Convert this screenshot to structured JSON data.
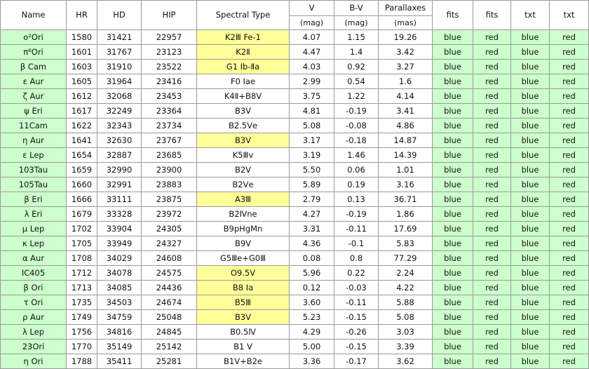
{
  "headers": {
    "name": "Name",
    "hr": "HR",
    "hd": "HD",
    "hip": "HIP",
    "spectral": "Spectral Type",
    "v": "V",
    "bv": "B-V",
    "parallax": "Parallaxes",
    "fits1": "fits",
    "fits2": "fits",
    "txt1": "txt",
    "txt2": "txt",
    "v_unit": "(mag)",
    "bv_unit": "(mag)",
    "parallax_unit": "(mas)"
  },
  "rows": [
    {
      "name": "ο²Ori",
      "hr": "1580",
      "hd": "31421",
      "hip": "22957",
      "sp": "K2Ⅲ Fe-1",
      "v": "4.07",
      "bv": "1.15",
      "plx": "19.26",
      "f1": "blue",
      "f2": "red",
      "t1": "blue",
      "t2": "red",
      "hl": true
    },
    {
      "name": "π⁶Ori",
      "hr": "1601",
      "hd": "31767",
      "hip": "23123",
      "sp": "K2Ⅱ",
      "v": "4.47",
      "bv": "1.4",
      "plx": "3.42",
      "f1": "blue",
      "f2": "red",
      "t1": "blue",
      "t2": "red",
      "hl": true
    },
    {
      "name": "β Cam",
      "hr": "1603",
      "hd": "31910",
      "hip": "23522",
      "sp": "G1 Ⅰb-Ⅱa",
      "v": "4.03",
      "bv": "0.92",
      "plx": "3.27",
      "f1": "blue",
      "f2": "red",
      "t1": "blue",
      "t2": "red",
      "hl": true
    },
    {
      "name": "ε Aur",
      "hr": "1605",
      "hd": "31964",
      "hip": "23416",
      "sp": "F0 Ⅰae",
      "v": "2.99",
      "bv": "0.54",
      "plx": "1.6",
      "f1": "blue",
      "f2": "red",
      "t1": "blue",
      "t2": "red",
      "hl": false
    },
    {
      "name": "ζ Aur",
      "hr": "1612",
      "hd": "32068",
      "hip": "23453",
      "sp": "K4Ⅱ+B8Ⅴ",
      "v": "3.75",
      "bv": "1.22",
      "plx": "4.14",
      "f1": "blue",
      "f2": "red",
      "t1": "blue",
      "t2": "red",
      "hl": false
    },
    {
      "name": "ψ Eri",
      "hr": "1617",
      "hd": "32249",
      "hip": "23364",
      "sp": "B3Ⅴ",
      "v": "4.81",
      "bv": "-0.19",
      "plx": "3.41",
      "f1": "blue",
      "f2": "red",
      "t1": "blue",
      "t2": "red",
      "hl": false
    },
    {
      "name": "11Cam",
      "hr": "1622",
      "hd": "32343",
      "hip": "23734",
      "sp": "B2.5Ⅴe",
      "v": "5.08",
      "bv": "-0.08",
      "plx": "4.86",
      "f1": "blue",
      "f2": "red",
      "t1": "blue",
      "t2": "red",
      "hl": false
    },
    {
      "name": "η Aur",
      "hr": "1641",
      "hd": "32630",
      "hip": "23767",
      "sp": "B3Ⅴ",
      "v": "3.17",
      "bv": "-0.18",
      "plx": "14.87",
      "f1": "blue",
      "f2": "red",
      "t1": "blue",
      "t2": "red",
      "hl": true
    },
    {
      "name": "ε Lep",
      "hr": "1654",
      "hd": "32887",
      "hip": "23685",
      "sp": "K5Ⅲv",
      "v": "3.19",
      "bv": "1.46",
      "plx": "14.39",
      "f1": "blue",
      "f2": "red",
      "t1": "blue",
      "t2": "red",
      "hl": false
    },
    {
      "name": "103Tau",
      "hr": "1659",
      "hd": "32990",
      "hip": "23900",
      "sp": "B2Ⅴ",
      "v": "5.50",
      "bv": "0.06",
      "plx": "1.01",
      "f1": "blue",
      "f2": "red",
      "t1": "blue",
      "t2": "red",
      "hl": false
    },
    {
      "name": "105Tau",
      "hr": "1660",
      "hd": "32991",
      "hip": "23883",
      "sp": "B2Ⅴe",
      "v": "5.89",
      "bv": "0.19",
      "plx": "3.16",
      "f1": "blue",
      "f2": "red",
      "t1": "blue",
      "t2": "red",
      "hl": false
    },
    {
      "name": "β Eri",
      "hr": "1666",
      "hd": "33111",
      "hip": "23875",
      "sp": "A3Ⅲ",
      "v": "2.79",
      "bv": "0.13",
      "plx": "36.71",
      "f1": "blue",
      "f2": "red",
      "t1": "blue",
      "t2": "red",
      "hl": true
    },
    {
      "name": "λ Eri",
      "hr": "1679",
      "hd": "33328",
      "hip": "23972",
      "sp": "B2Ⅳne",
      "v": "4.27",
      "bv": "-0.19",
      "plx": "1.86",
      "f1": "blue",
      "f2": "red",
      "t1": "blue",
      "t2": "red",
      "hl": false
    },
    {
      "name": "μ Lep",
      "hr": "1702",
      "hd": "33904",
      "hip": "24305",
      "sp": "B9pHgMn",
      "v": "3.31",
      "bv": "-0.11",
      "plx": "17.69",
      "f1": "blue",
      "f2": "red",
      "t1": "blue",
      "t2": "red",
      "hl": false
    },
    {
      "name": "κ Lep",
      "hr": "1705",
      "hd": "33949",
      "hip": "24327",
      "sp": "B9Ⅴ",
      "v": "4.36",
      "bv": "-0.1",
      "plx": "5.83",
      "f1": "blue",
      "f2": "red",
      "t1": "blue",
      "t2": "red",
      "hl": false
    },
    {
      "name": "α Aur",
      "hr": "1708",
      "hd": "34029",
      "hip": "24608",
      "sp": "G5Ⅲe+G0Ⅲ",
      "v": "0.08",
      "bv": "0.8",
      "plx": "77.29",
      "f1": "blue",
      "f2": "red",
      "t1": "blue",
      "t2": "red",
      "hl": false
    },
    {
      "name": "IC405",
      "hr": "1712",
      "hd": "34078",
      "hip": "24575",
      "sp": "O9.5Ⅴ",
      "v": "5.96",
      "bv": "0.22",
      "plx": "2.24",
      "f1": "blue",
      "f2": "red",
      "t1": "blue",
      "t2": "red",
      "hl": true
    },
    {
      "name": "β Ori",
      "hr": "1713",
      "hd": "34085",
      "hip": "24436",
      "sp": "B8 Ⅰa",
      "v": "0.12",
      "bv": "-0.03",
      "plx": "4.22",
      "f1": "blue",
      "f2": "red",
      "t1": "blue",
      "t2": "red",
      "hl": true
    },
    {
      "name": "τ Ori",
      "hr": "1735",
      "hd": "34503",
      "hip": "24674",
      "sp": "B5Ⅲ",
      "v": "3.60",
      "bv": "-0.11",
      "plx": "5.88",
      "f1": "blue",
      "f2": "red",
      "t1": "blue",
      "t2": "red",
      "hl": true
    },
    {
      "name": "ρ Aur",
      "hr": "1749",
      "hd": "34759",
      "hip": "25048",
      "sp": "B3Ⅴ",
      "v": "5.23",
      "bv": "-0.15",
      "plx": "5.08",
      "f1": "blue",
      "f2": "red",
      "t1": "blue",
      "t2": "red",
      "hl": true
    },
    {
      "name": "λ Lep",
      "hr": "1756",
      "hd": "34816",
      "hip": "24845",
      "sp": "B0.5Ⅳ",
      "v": "4.29",
      "bv": "-0.26",
      "plx": "3.03",
      "f1": "blue",
      "f2": "red",
      "t1": "blue",
      "t2": "red",
      "hl": false
    },
    {
      "name": "23Ori",
      "hr": "1770",
      "hd": "35149",
      "hip": "25142",
      "sp": "B1 Ⅴ",
      "v": "5.00",
      "bv": "-0.15",
      "plx": "3.39",
      "f1": "blue",
      "f2": "red",
      "t1": "blue",
      "t2": "red",
      "hl": false
    },
    {
      "name": "η Ori",
      "hr": "1788",
      "hd": "35411",
      "hip": "25281",
      "sp": "B1Ⅴ+B2e",
      "v": "3.36",
      "bv": "-0.17",
      "plx": "3.62",
      "f1": "blue",
      "f2": "red",
      "t1": "blue",
      "t2": "red",
      "hl": false
    }
  ],
  "colors": {
    "name_bg": "#ccffcc",
    "fits_bg": "#ccffcc",
    "highlight": "#ffff99",
    "border": "#9a9a9a"
  }
}
